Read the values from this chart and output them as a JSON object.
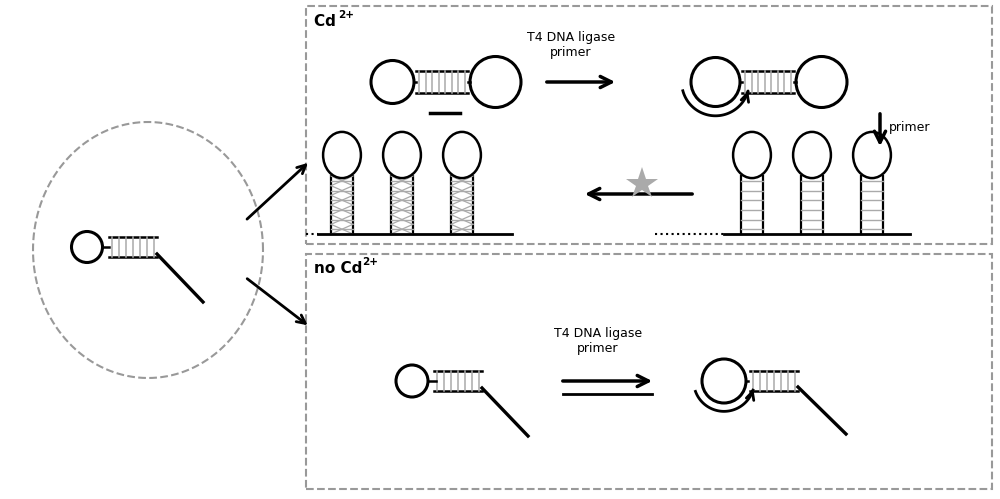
{
  "bg_color": "#ffffff",
  "line_color": "#000000",
  "gray_color": "#aaaaaa",
  "light_gray": "#cccccc",
  "dashed_color": "#999999",
  "label_t4_1": "T4 DNA ligase\nprimer",
  "label_t4_2": "T4 DNA ligase\nprimer",
  "label_primer": "primer",
  "figsize": [
    10.0,
    4.99
  ],
  "dpi": 100
}
